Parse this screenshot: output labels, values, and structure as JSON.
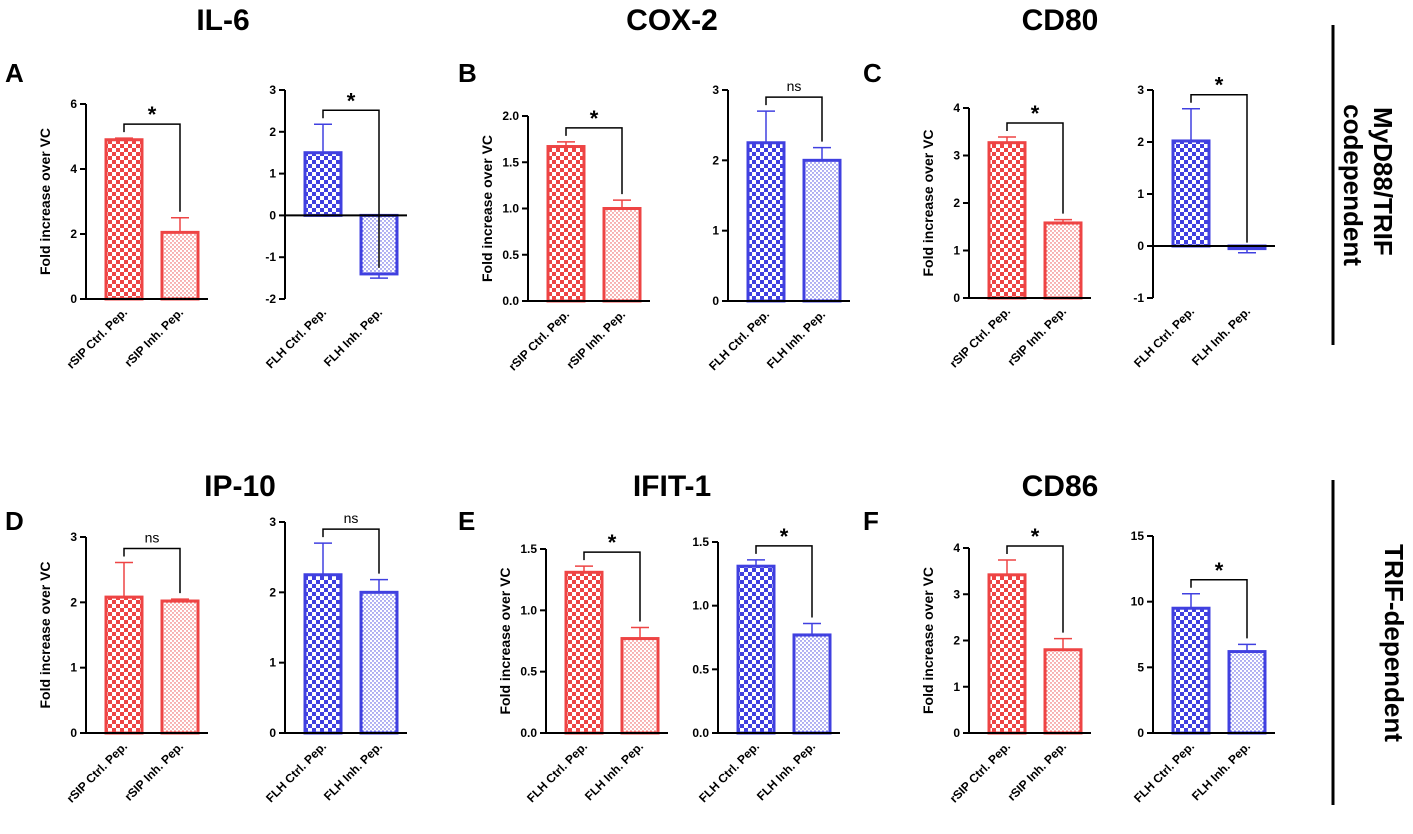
{
  "figure": {
    "side_labels": [
      "MyD88/TRIF codependent",
      "TRIF-dependent"
    ]
  },
  "colors": {
    "red": "#ee4444",
    "blue": "#4040e0",
    "axis": "#000000"
  },
  "chart_data": [
    {
      "type": "bar",
      "panel": "A",
      "marker": "IL-6",
      "title": "IL-6",
      "show_panel": true,
      "show_title": true,
      "ylabel": "Fold increase over VC",
      "ylim": [
        0,
        6
      ],
      "yticks": [
        0,
        2,
        4,
        6
      ],
      "ytick_labels": [
        "0",
        "2",
        "4",
        "6"
      ],
      "categories": [
        "rSIP Ctrl. Pep.",
        "rSIP Inh. Pep."
      ],
      "values": [
        4.9,
        2.05
      ],
      "errors": [
        0.05,
        0.45
      ],
      "color": "red",
      "significance": "*"
    },
    {
      "type": "bar",
      "panel": "A",
      "marker": "IL-6",
      "title": "",
      "show_panel": false,
      "show_title": false,
      "ylabel": "",
      "ylim": [
        -2,
        3
      ],
      "yticks": [
        -2,
        -1,
        0,
        1,
        2,
        3
      ],
      "ytick_labels": [
        "-2",
        "-1",
        "0",
        "1",
        "2",
        "3"
      ],
      "categories": [
        "FLH Ctrl. Pep.",
        "FLH Inh. Pep."
      ],
      "values": [
        1.5,
        -1.4
      ],
      "errors": [
        0.68,
        0.1
      ],
      "color": "blue",
      "significance": "*"
    },
    {
      "type": "bar",
      "panel": "B",
      "marker": "COX-2",
      "title": "COX-2",
      "show_panel": true,
      "show_title": true,
      "ylabel": "Fold increase over VC",
      "ylim": [
        0,
        2.0
      ],
      "yticks": [
        0,
        0.5,
        1.0,
        1.5,
        2.0
      ],
      "ytick_labels": [
        "0.0",
        "0.5",
        "1.0",
        "1.5",
        "2.0"
      ],
      "categories": [
        "rSIP Ctrl. Pep.",
        "rSIP Inh. Pep."
      ],
      "values": [
        1.67,
        1.0
      ],
      "errors": [
        0.05,
        0.09
      ],
      "color": "red",
      "significance": "*"
    },
    {
      "type": "bar",
      "panel": "B",
      "marker": "COX-2",
      "title": "",
      "show_panel": false,
      "show_title": false,
      "ylabel": "",
      "ylim": [
        0,
        3
      ],
      "yticks": [
        0,
        1,
        2,
        3
      ],
      "ytick_labels": [
        "0",
        "1",
        "2",
        "3"
      ],
      "categories": [
        "FLH Ctrl. Pep.",
        "FLH Inh. Pep."
      ],
      "values": [
        2.25,
        2.0
      ],
      "errors": [
        0.45,
        0.18
      ],
      "color": "blue",
      "significance": "ns"
    },
    {
      "type": "bar",
      "panel": "C",
      "marker": "CD80",
      "title": "CD80",
      "show_panel": true,
      "show_title": true,
      "ylabel": "Fold increase over VC",
      "ylim": [
        0,
        4
      ],
      "yticks": [
        0,
        1,
        2,
        3,
        4
      ],
      "ytick_labels": [
        "0",
        "1",
        "2",
        "3",
        "4"
      ],
      "categories": [
        "rSIP Ctrl. Pep.",
        "rSIP Inh. Pep."
      ],
      "values": [
        3.27,
        1.58
      ],
      "errors": [
        0.12,
        0.07
      ],
      "color": "red",
      "significance": "*"
    },
    {
      "type": "bar",
      "panel": "C",
      "marker": "CD80",
      "title": "",
      "show_panel": false,
      "show_title": false,
      "ylabel": "",
      "ylim": [
        -1,
        3
      ],
      "yticks": [
        -1,
        0,
        1,
        2,
        3
      ],
      "ytick_labels": [
        "-1",
        "0",
        "1",
        "2",
        "3"
      ],
      "categories": [
        "FLH Ctrl. Pep.",
        "FLH Inh. Pep."
      ],
      "values": [
        2.02,
        -0.05
      ],
      "errors": [
        0.62,
        0.08
      ],
      "color": "blue",
      "significance": "*"
    },
    {
      "type": "bar",
      "panel": "D",
      "marker": "IP-10",
      "title": "IP-10",
      "show_panel": true,
      "show_title": true,
      "ylabel": "Fold increase over VC",
      "ylim": [
        0,
        3
      ],
      "yticks": [
        0,
        1,
        2,
        3
      ],
      "ytick_labels": [
        "0",
        "1",
        "2",
        "3"
      ],
      "categories": [
        "rSIP Ctrl. Pep.",
        "rSIP Inh. Pep."
      ],
      "values": [
        2.08,
        2.02
      ],
      "errors": [
        0.53,
        0.03
      ],
      "color": "red",
      "significance": "ns"
    },
    {
      "type": "bar",
      "panel": "D",
      "marker": "IP-10",
      "title": "",
      "show_panel": false,
      "show_title": false,
      "ylabel": "",
      "ylim": [
        0,
        3
      ],
      "yticks": [
        0,
        1,
        2,
        3
      ],
      "ytick_labels": [
        "0",
        "1",
        "2",
        "3"
      ],
      "categories": [
        "FLH Ctrl. Pep.",
        "FLH Inh. Pep."
      ],
      "values": [
        2.25,
        2.0
      ],
      "errors": [
        0.45,
        0.18
      ],
      "color": "blue",
      "significance": "ns"
    },
    {
      "type": "bar",
      "panel": "E",
      "marker": "IFIT-1",
      "title": "IFIT-1",
      "show_panel": true,
      "show_title": true,
      "ylabel": "Fold increase over VC",
      "ylim": [
        0,
        1.5
      ],
      "yticks": [
        0,
        0.5,
        1.0,
        1.5
      ],
      "ytick_labels": [
        "0.0",
        "0.5",
        "1.0",
        "1.5"
      ],
      "categories": [
        "FLH Ctrl. Pep.",
        "FLH Inh. Pep."
      ],
      "values": [
        1.31,
        0.77
      ],
      "errors": [
        0.05,
        0.09
      ],
      "color": "red",
      "significance": "*"
    },
    {
      "type": "bar",
      "panel": "E",
      "marker": "IFIT-1",
      "title": "",
      "show_panel": false,
      "show_title": false,
      "ylabel": "",
      "ylim": [
        0,
        1.5
      ],
      "yticks": [
        0,
        0.5,
        1.0,
        1.5
      ],
      "ytick_labels": [
        "0.0",
        "0.5",
        "1.0",
        "1.5"
      ],
      "categories": [
        "FLH Ctrl. Pep.",
        "FLH Inh. Pep."
      ],
      "values": [
        1.31,
        0.77
      ],
      "errors": [
        0.05,
        0.09
      ],
      "color": "blue",
      "significance": "*"
    },
    {
      "type": "bar",
      "panel": "F",
      "marker": "CD86",
      "title": "CD86",
      "show_panel": true,
      "show_title": true,
      "ylabel": "Fold increase over VC",
      "ylim": [
        0,
        4
      ],
      "yticks": [
        0,
        1,
        2,
        3,
        4
      ],
      "ytick_labels": [
        "0",
        "1",
        "2",
        "3",
        "4"
      ],
      "categories": [
        "rSIP Ctrl. Pep.",
        "rSIP Inh. Pep."
      ],
      "values": [
        3.42,
        1.8
      ],
      "errors": [
        0.32,
        0.24
      ],
      "color": "red",
      "significance": "*"
    },
    {
      "type": "bar",
      "panel": "F",
      "marker": "CD86",
      "title": "",
      "show_panel": false,
      "show_title": false,
      "ylabel": "",
      "ylim": [
        0,
        15
      ],
      "yticks": [
        0,
        5,
        10,
        15
      ],
      "ytick_labels": [
        "0",
        "5",
        "10",
        "15"
      ],
      "categories": [
        "FLH Ctrl. Pep.",
        "FLH Inh. Pep."
      ],
      "values": [
        9.5,
        6.2
      ],
      "errors": [
        1.1,
        0.55
      ],
      "color": "blue",
      "significance": "*"
    }
  ]
}
